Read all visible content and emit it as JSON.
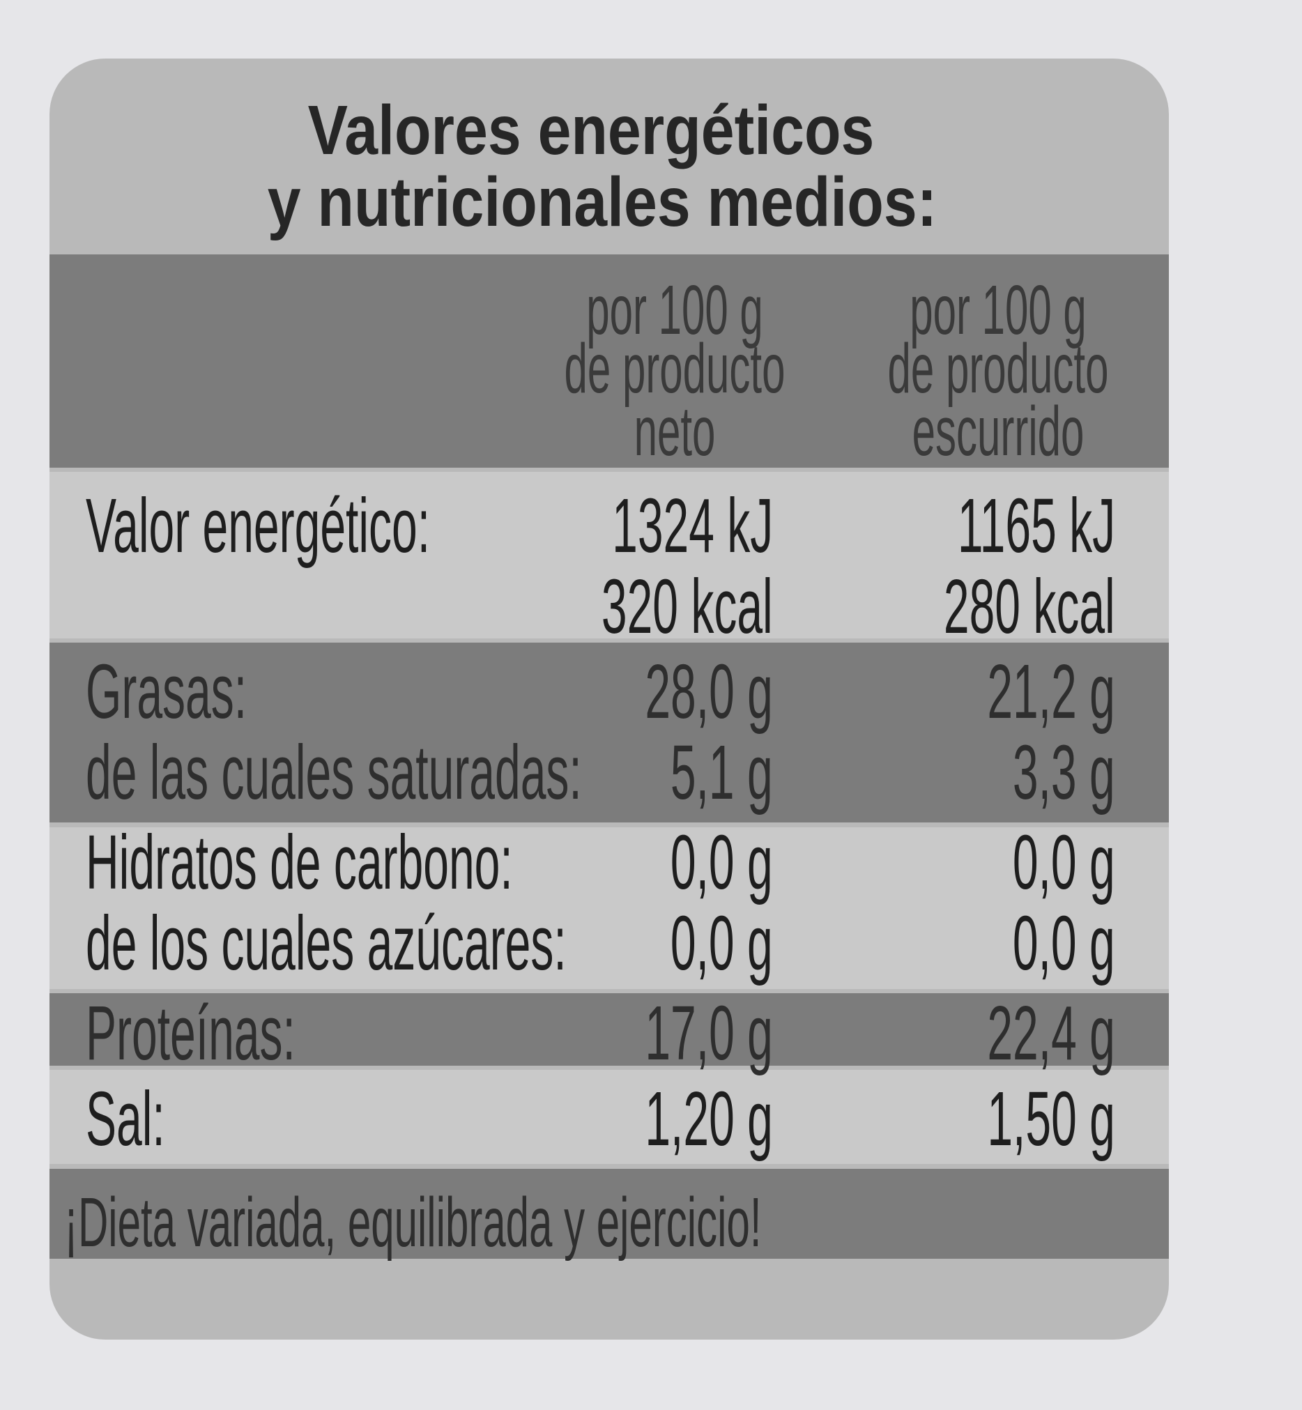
{
  "title": [
    "Valores energéticos",
    "y nutricionales medios:"
  ],
  "table": {
    "headers": [
      [
        "por 100 g",
        "de producto",
        "neto"
      ],
      [
        "por 100 g",
        "de producto",
        "escurrido"
      ]
    ],
    "bands": [
      {
        "lines": [
          {
            "label": "Valor energético:",
            "values": [
              "1324 kJ",
              "1165 kJ"
            ]
          },
          {
            "values": [
              "320 kcal",
              "280 kcal"
            ]
          }
        ]
      },
      {
        "lines": [
          {
            "label": "Grasas:",
            "values": [
              "28,0 g",
              "21,2 g"
            ]
          },
          {
            "label": "de las cuales saturadas:",
            "values": [
              "5,1 g",
              "3,3 g"
            ]
          }
        ]
      },
      {
        "lines": [
          {
            "label": "Hidratos de carbono:",
            "values": [
              "0,0 g",
              "0,0 g"
            ]
          },
          {
            "label": "de los cuales azúcares:",
            "values": [
              "0,0 g",
              "0,0 g"
            ]
          }
        ]
      },
      {
        "lines": [
          {
            "label": "Proteínas:",
            "values": [
              "17,0 g",
              "22,4 g"
            ]
          }
        ]
      },
      {
        "lines": [
          {
            "label": "Sal:",
            "values": [
              "1,20 g",
              "1,50 g"
            ]
          }
        ]
      }
    ]
  },
  "footer": "¡Dieta variada, equilibrada y ejercicio!"
}
